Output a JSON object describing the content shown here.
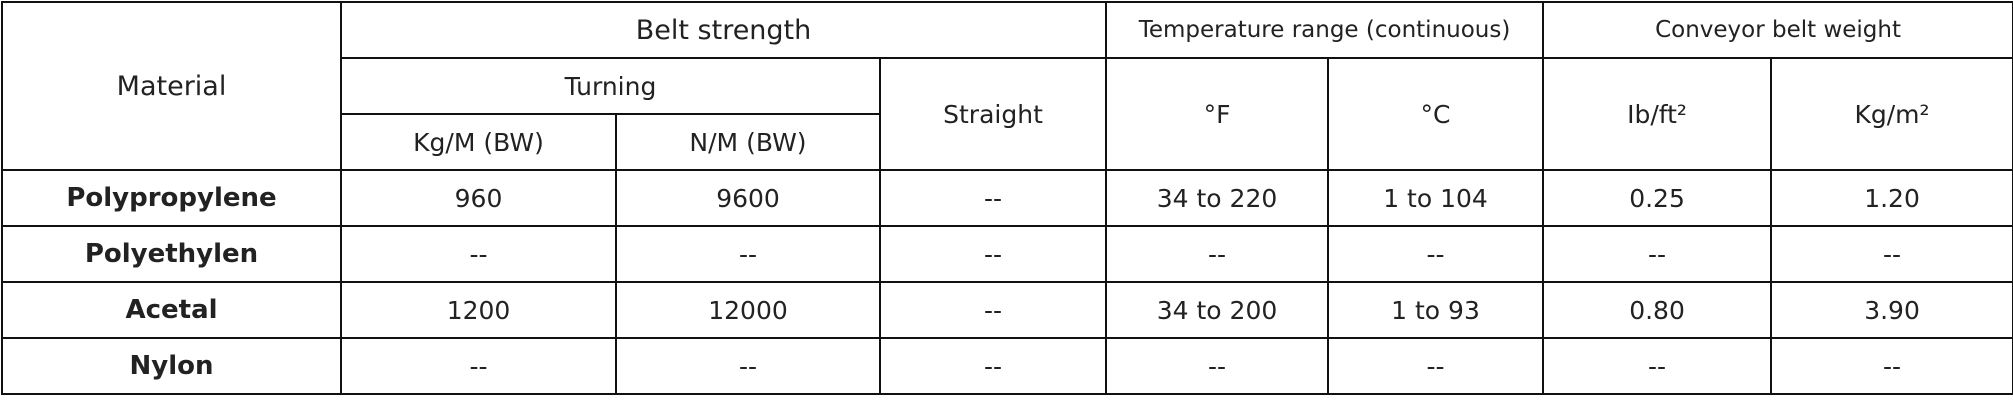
{
  "table": {
    "header": {
      "material": "Material",
      "belt_strength": "Belt strength",
      "temperature_range": "Temperature range (continuous)",
      "belt_weight": "Conveyor belt weight",
      "turning": "Turning",
      "straight": "Straight",
      "fahrenheit": "°F",
      "celsius": "°C",
      "lb_ft2": "Ib/ft²",
      "kg_m2": "Kg/m²",
      "kg_m_bw": "Kg/M (BW)",
      "n_m_bw": "N/M (BW)"
    },
    "rows": [
      [
        "Polypropylene",
        "960",
        "9600",
        "--",
        "34 to 220",
        "1 to 104",
        "0.25",
        "1.20"
      ],
      [
        "Polyethylen",
        "--",
        "--",
        "--",
        "--",
        "--",
        "--",
        "--"
      ],
      [
        "Acetal",
        "1200",
        "12000",
        "--",
        "34 to 200",
        "1 to 93",
        "0.80",
        "3.90"
      ],
      [
        "Nylon",
        "--",
        "--",
        "--",
        "--",
        "--",
        "--",
        "--"
      ]
    ]
  }
}
